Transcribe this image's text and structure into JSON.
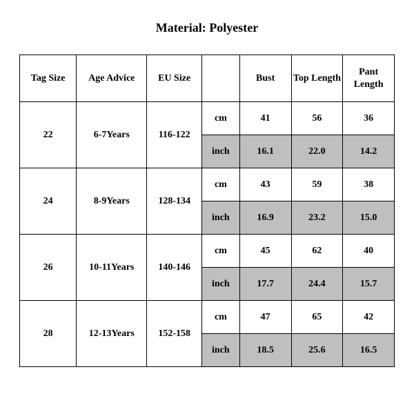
{
  "title": "Material: Polyester",
  "table": {
    "columns": [
      "Tag Size",
      "Age Advice",
      "EU Size",
      "",
      "Bust",
      "Top Length",
      "Pant Length"
    ],
    "background_color": "#ffffff",
    "shaded_color": "#bfbfbf",
    "border_color": "#000000",
    "header_fontsize": 14,
    "cell_fontsize": 14,
    "font_family": "Times New Roman",
    "rows": [
      {
        "tag_size": "22",
        "age_advice": "6-7Years",
        "eu_size": "116-122",
        "cm": {
          "unit": "cm",
          "bust": "41",
          "top": "56",
          "pant": "36"
        },
        "inch": {
          "unit": "inch",
          "bust": "16.1",
          "top": "22.0",
          "pant": "14.2"
        }
      },
      {
        "tag_size": "24",
        "age_advice": "8-9Years",
        "eu_size": "128-134",
        "cm": {
          "unit": "cm",
          "bust": "43",
          "top": "59",
          "pant": "38"
        },
        "inch": {
          "unit": "inch",
          "bust": "16.9",
          "top": "23.2",
          "pant": "15.0"
        }
      },
      {
        "tag_size": "26",
        "age_advice": "10-11Years",
        "eu_size": "140-146",
        "cm": {
          "unit": "cm",
          "bust": "45",
          "top": "62",
          "pant": "40"
        },
        "inch": {
          "unit": "inch",
          "bust": "17.7",
          "top": "24.4",
          "pant": "15.7"
        }
      },
      {
        "tag_size": "28",
        "age_advice": "12-13Years",
        "eu_size": "152-158",
        "cm": {
          "unit": "cm",
          "bust": "47",
          "top": "65",
          "pant": "42"
        },
        "inch": {
          "unit": "inch",
          "bust": "18.5",
          "top": "25.6",
          "pant": "16.5"
        }
      }
    ]
  }
}
